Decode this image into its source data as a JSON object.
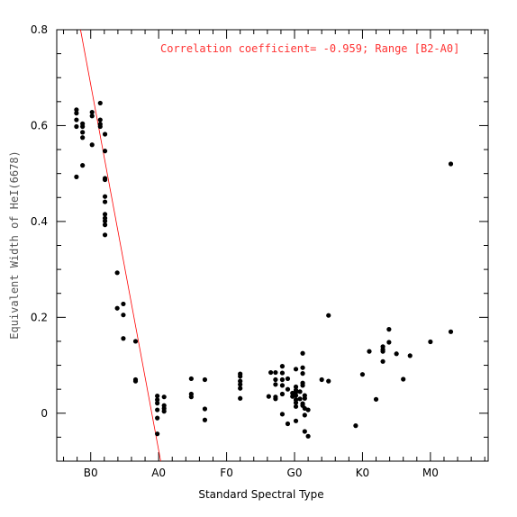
{
  "chart_data": {
    "type": "scatter",
    "title": "",
    "xlabel": "Standard Spectral Type",
    "ylabel": "Equivalent Width of HeI(6678)",
    "annotation": "Correlation coefficient= -0.959; Range [B2-A0]",
    "annotation_color": "#ff3333",
    "point_color": "#000000",
    "fit_line_color": "#ff0000",
    "xlim": [
      -0.5,
      5.85
    ],
    "ylim": [
      -0.1,
      0.8
    ],
    "x_ticks": [
      {
        "value": 0,
        "label": "B0"
      },
      {
        "value": 1,
        "label": "A0"
      },
      {
        "value": 2,
        "label": "F0"
      },
      {
        "value": 3,
        "label": "G0"
      },
      {
        "value": 4,
        "label": "K0"
      },
      {
        "value": 5,
        "label": "M0"
      }
    ],
    "y_ticks": [
      {
        "value": 0,
        "label": "0"
      },
      {
        "value": 0.2,
        "label": "0.2"
      },
      {
        "value": 0.4,
        "label": "0.4"
      },
      {
        "value": 0.6,
        "label": "0.6"
      },
      {
        "value": 0.8,
        "label": "0.8"
      }
    ],
    "fit_line": {
      "x": [
        -0.15,
        1.03
      ],
      "y": [
        0.8,
        -0.1
      ]
    },
    "points": [
      [
        -0.21,
        0.633
      ],
      [
        -0.21,
        0.626
      ],
      [
        -0.21,
        0.612
      ],
      [
        -0.21,
        0.598
      ],
      [
        -0.21,
        0.493
      ],
      [
        -0.12,
        0.604
      ],
      [
        -0.12,
        0.598
      ],
      [
        -0.12,
        0.586
      ],
      [
        -0.12,
        0.575
      ],
      [
        -0.12,
        0.517
      ],
      [
        0.02,
        0.628
      ],
      [
        0.02,
        0.62
      ],
      [
        0.02,
        0.56
      ],
      [
        0.14,
        0.647
      ],
      [
        0.14,
        0.612
      ],
      [
        0.14,
        0.603
      ],
      [
        0.14,
        0.598
      ],
      [
        0.21,
        0.582
      ],
      [
        0.21,
        0.547
      ],
      [
        0.21,
        0.49
      ],
      [
        0.21,
        0.487
      ],
      [
        0.21,
        0.452
      ],
      [
        0.21,
        0.441
      ],
      [
        0.21,
        0.415
      ],
      [
        0.21,
        0.407
      ],
      [
        0.21,
        0.401
      ],
      [
        0.21,
        0.393
      ],
      [
        0.21,
        0.372
      ],
      [
        0.39,
        0.293
      ],
      [
        0.39,
        0.219
      ],
      [
        0.48,
        0.228
      ],
      [
        0.48,
        0.205
      ],
      [
        0.48,
        0.156
      ],
      [
        0.66,
        0.15
      ],
      [
        0.66,
        0.07
      ],
      [
        0.66,
        0.067
      ],
      [
        0.98,
        0.036
      ],
      [
        0.98,
        0.028
      ],
      [
        0.98,
        0.021
      ],
      [
        0.98,
        0.007
      ],
      [
        0.98,
        -0.01
      ],
      [
        0.98,
        -0.043
      ],
      [
        1.08,
        0.034
      ],
      [
        1.08,
        0.016
      ],
      [
        1.08,
        0.01
      ],
      [
        1.08,
        0.004
      ],
      [
        1.48,
        0.072
      ],
      [
        1.48,
        0.04
      ],
      [
        1.48,
        0.034
      ],
      [
        1.68,
        0.07
      ],
      [
        1.68,
        0.009
      ],
      [
        1.68,
        -0.014
      ],
      [
        2.2,
        0.082
      ],
      [
        2.2,
        0.077
      ],
      [
        2.2,
        0.067
      ],
      [
        2.2,
        0.06
      ],
      [
        2.2,
        0.052
      ],
      [
        2.2,
        0.031
      ],
      [
        2.65,
        0.085
      ],
      [
        2.62,
        0.035
      ],
      [
        2.72,
        0.085
      ],
      [
        2.72,
        0.07
      ],
      [
        2.72,
        0.06
      ],
      [
        2.72,
        0.034
      ],
      [
        2.72,
        0.03
      ],
      [
        2.82,
        0.098
      ],
      [
        2.82,
        0.084
      ],
      [
        2.82,
        0.07
      ],
      [
        2.82,
        0.058
      ],
      [
        2.82,
        0.04
      ],
      [
        2.82,
        -0.002
      ],
      [
        2.9,
        0.072
      ],
      [
        2.9,
        0.05
      ],
      [
        2.9,
        -0.022
      ],
      [
        2.97,
        0.042
      ],
      [
        2.97,
        0.035
      ],
      [
        3.02,
        0.092
      ],
      [
        3.02,
        0.055
      ],
      [
        3.02,
        0.048
      ],
      [
        3.02,
        0.044
      ],
      [
        3.02,
        0.037
      ],
      [
        3.02,
        0.028
      ],
      [
        3.02,
        0.022
      ],
      [
        3.02,
        0.014
      ],
      [
        3.02,
        -0.016
      ],
      [
        3.08,
        0.045
      ],
      [
        3.08,
        0.03
      ],
      [
        3.12,
        0.125
      ],
      [
        3.12,
        0.095
      ],
      [
        3.12,
        0.083
      ],
      [
        3.12,
        0.063
      ],
      [
        3.12,
        0.058
      ],
      [
        3.12,
        0.02
      ],
      [
        3.12,
        0.016
      ],
      [
        3.15,
        0.037
      ],
      [
        3.15,
        0.031
      ],
      [
        3.15,
        0.01
      ],
      [
        3.15,
        -0.004
      ],
      [
        3.15,
        -0.038
      ],
      [
        3.2,
        0.007
      ],
      [
        3.2,
        -0.048
      ],
      [
        3.4,
        0.07
      ],
      [
        3.5,
        0.204
      ],
      [
        3.5,
        0.067
      ],
      [
        3.9,
        -0.026
      ],
      [
        4.0,
        0.081
      ],
      [
        4.1,
        0.129
      ],
      [
        4.2,
        0.029
      ],
      [
        4.3,
        0.139
      ],
      [
        4.3,
        0.133
      ],
      [
        4.3,
        0.129
      ],
      [
        4.3,
        0.108
      ],
      [
        4.39,
        0.175
      ],
      [
        4.39,
        0.148
      ],
      [
        4.5,
        0.124
      ],
      [
        4.6,
        0.071
      ],
      [
        4.7,
        0.12
      ],
      [
        5.0,
        0.149
      ],
      [
        5.3,
        0.52
      ],
      [
        5.3,
        0.17
      ]
    ]
  }
}
